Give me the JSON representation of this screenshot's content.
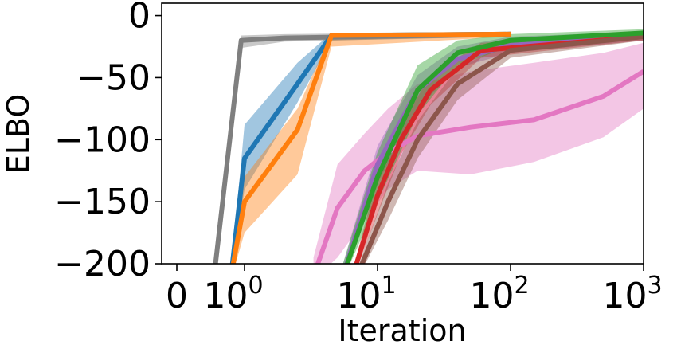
{
  "chart_data": {
    "type": "line",
    "title": "",
    "xlabel": "Iteration",
    "ylabel": "ELBO",
    "x_scale": "symlog",
    "xlim": [
      -0.25,
      1000
    ],
    "ylim": [
      -200,
      10
    ],
    "x_ticks": [
      {
        "value": 0,
        "base": "0",
        "exp": ""
      },
      {
        "value": 1,
        "base": "10",
        "exp": "0"
      },
      {
        "value": 10,
        "base": "10",
        "exp": "1"
      },
      {
        "value": 100,
        "base": "10",
        "exp": "2"
      },
      {
        "value": 1000,
        "base": "10",
        "exp": "3"
      }
    ],
    "y_ticks": [
      {
        "value": 0,
        "label": "0"
      },
      {
        "value": -50,
        "label": "−50"
      },
      {
        "value": -100,
        "label": "−100"
      },
      {
        "value": -150,
        "label": "−150"
      },
      {
        "value": -200,
        "label": "−200"
      }
    ],
    "grid": false,
    "series": [
      {
        "color": "#7f7f7f",
        "points": [
          [
            0.55,
            -210
          ],
          [
            0.95,
            -20
          ],
          [
            2,
            -18
          ],
          [
            100,
            -15
          ]
        ],
        "band_upper": [
          -207,
          -16,
          -15,
          -13
        ],
        "band_lower": [
          -213,
          -26,
          -21,
          -17
        ]
      },
      {
        "color": "#1f77b4",
        "points": [
          [
            0.8,
            -210
          ],
          [
            1,
            -115
          ],
          [
            2.5,
            -55
          ],
          [
            4.5,
            -16
          ],
          [
            100,
            -15
          ]
        ],
        "band_upper": [
          -207,
          -88,
          -38,
          -14,
          -13
        ],
        "band_lower": [
          -213,
          -140,
          -70,
          -20,
          -17
        ]
      },
      {
        "color": "#ff7f0e",
        "points": [
          [
            0.8,
            -210
          ],
          [
            1,
            -150
          ],
          [
            2.5,
            -92
          ],
          [
            4.5,
            -16
          ],
          [
            100,
            -15
          ]
        ],
        "band_upper": [
          -207,
          -130,
          -75,
          -14,
          -13
        ],
        "band_lower": [
          -213,
          -175,
          -128,
          -25,
          -17
        ]
      },
      {
        "color": "#e377c2",
        "points": [
          [
            3.3,
            -210
          ],
          [
            5,
            -155
          ],
          [
            8,
            -125
          ],
          [
            12,
            -110
          ],
          [
            20,
            -97
          ],
          [
            50,
            -90
          ],
          [
            150,
            -84
          ],
          [
            500,
            -65
          ],
          [
            1000,
            -45
          ]
        ],
        "band_upper": [
          -195,
          -120,
          -95,
          -75,
          -55,
          -45,
          -38,
          -30,
          -22
        ],
        "band_lower": [
          -213,
          -195,
          -165,
          -140,
          -125,
          -128,
          -118,
          -98,
          -75
        ]
      },
      {
        "color": "#9467bd",
        "points": [
          [
            5.5,
            -210
          ],
          [
            10,
            -120
          ],
          [
            20,
            -60
          ],
          [
            40,
            -35
          ],
          [
            100,
            -24
          ],
          [
            1000,
            -17
          ]
        ],
        "band_upper": [
          -200,
          -105,
          -48,
          -25,
          -17,
          -13
        ],
        "band_lower": [
          -213,
          -135,
          -75,
          -42,
          -30,
          -20
        ]
      },
      {
        "color": "#d62728",
        "points": [
          [
            6.5,
            -210
          ],
          [
            10,
            -145
          ],
          [
            15,
            -100
          ],
          [
            25,
            -60
          ],
          [
            60,
            -28
          ],
          [
            1000,
            -17
          ]
        ],
        "band_upper": [
          -205,
          -130,
          -88,
          -48,
          -22,
          -14
        ],
        "band_lower": [
          -213,
          -160,
          -112,
          -72,
          -34,
          -20
        ]
      },
      {
        "color": "#8c564b",
        "points": [
          [
            7,
            -210
          ],
          [
            12,
            -150
          ],
          [
            20,
            -100
          ],
          [
            40,
            -55
          ],
          [
            100,
            -28
          ],
          [
            1000,
            -17
          ]
        ],
        "band_upper": [
          -205,
          -135,
          -85,
          -42,
          -22,
          -14
        ],
        "band_lower": [
          -213,
          -165,
          -115,
          -68,
          -34,
          -20
        ]
      },
      {
        "color": "#2ca02c",
        "points": [
          [
            5.5,
            -210
          ],
          [
            10,
            -130
          ],
          [
            20,
            -60
          ],
          [
            40,
            -30
          ],
          [
            100,
            -20
          ],
          [
            1000,
            -14
          ]
        ],
        "band_upper": [
          -200,
          -110,
          -40,
          -20,
          -15,
          -11
        ],
        "band_lower": [
          -213,
          -150,
          -80,
          -40,
          -25,
          -17
        ]
      }
    ]
  }
}
